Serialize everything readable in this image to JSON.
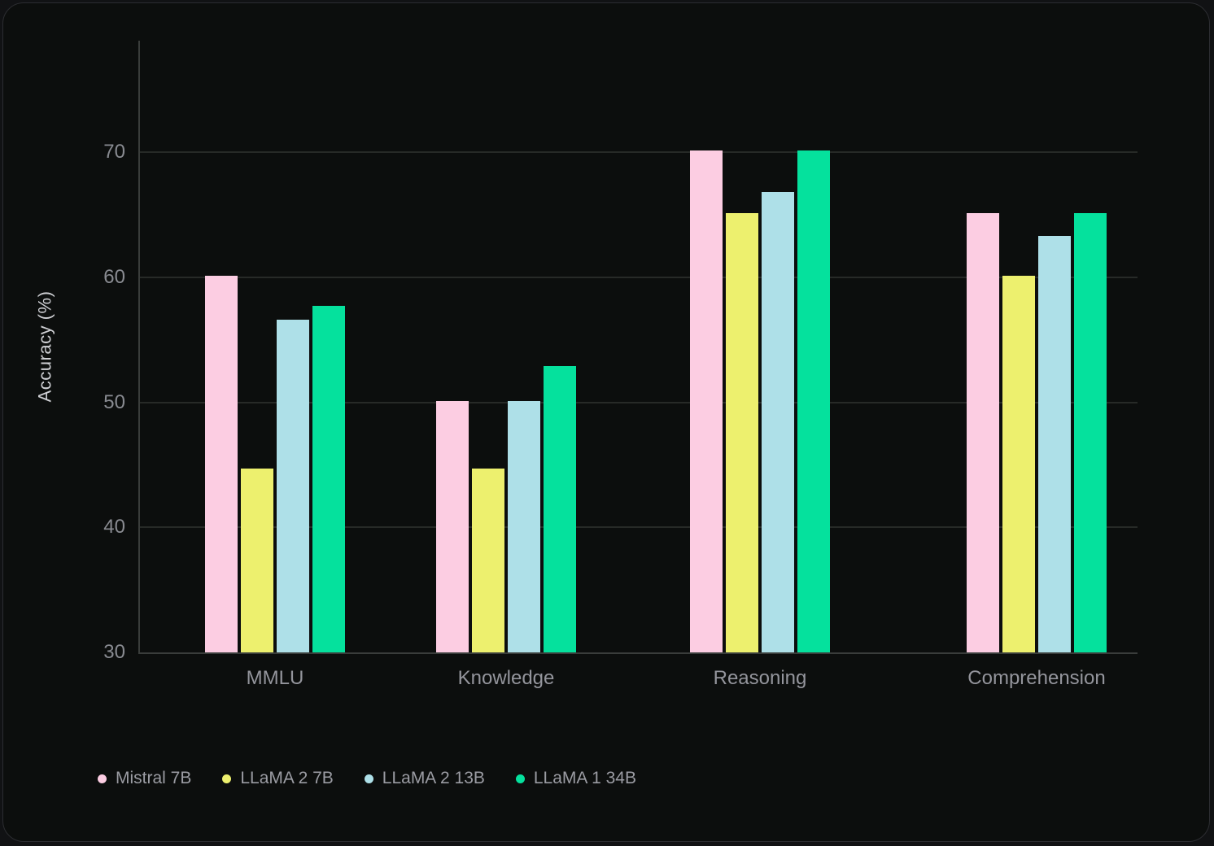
{
  "chart_data": {
    "type": "bar",
    "title": "",
    "xlabel": "",
    "ylabel": "Accuracy (%)",
    "categories": [
      "MMLU",
      "Knowledge",
      "Reasoning",
      "Comprehension"
    ],
    "series": [
      {
        "name": "Mistral 7B",
        "color": "#FCCDE2",
        "values": [
          60.1,
          50.1,
          70.1,
          65.1
        ]
      },
      {
        "name": "LLaMA 2 7B",
        "color": "#EDF06E",
        "values": [
          44.7,
          44.7,
          65.1,
          60.1
        ]
      },
      {
        "name": "LLaMA 2 13B",
        "color": "#AEE0E8",
        "values": [
          56.6,
          50.1,
          66.8,
          63.3
        ]
      },
      {
        "name": "LLaMA 1 34B",
        "color": "#05E19D",
        "values": [
          57.7,
          52.9,
          70.1,
          65.1
        ]
      }
    ],
    "ylim": [
      30,
      79
    ],
    "yticks": [
      30,
      40,
      50,
      60,
      70
    ],
    "grid": true,
    "legend_position": "bottom-left"
  },
  "style": {
    "card_background": "#0c0e0d",
    "gridline_color": "#272a27",
    "axis_color": "#3a3d3b",
    "tick_text_color": "#898b91",
    "category_text_color": "#94959c",
    "legend_text_color": "#9b9ca3",
    "axis_title_color": "#cfd0d4"
  }
}
